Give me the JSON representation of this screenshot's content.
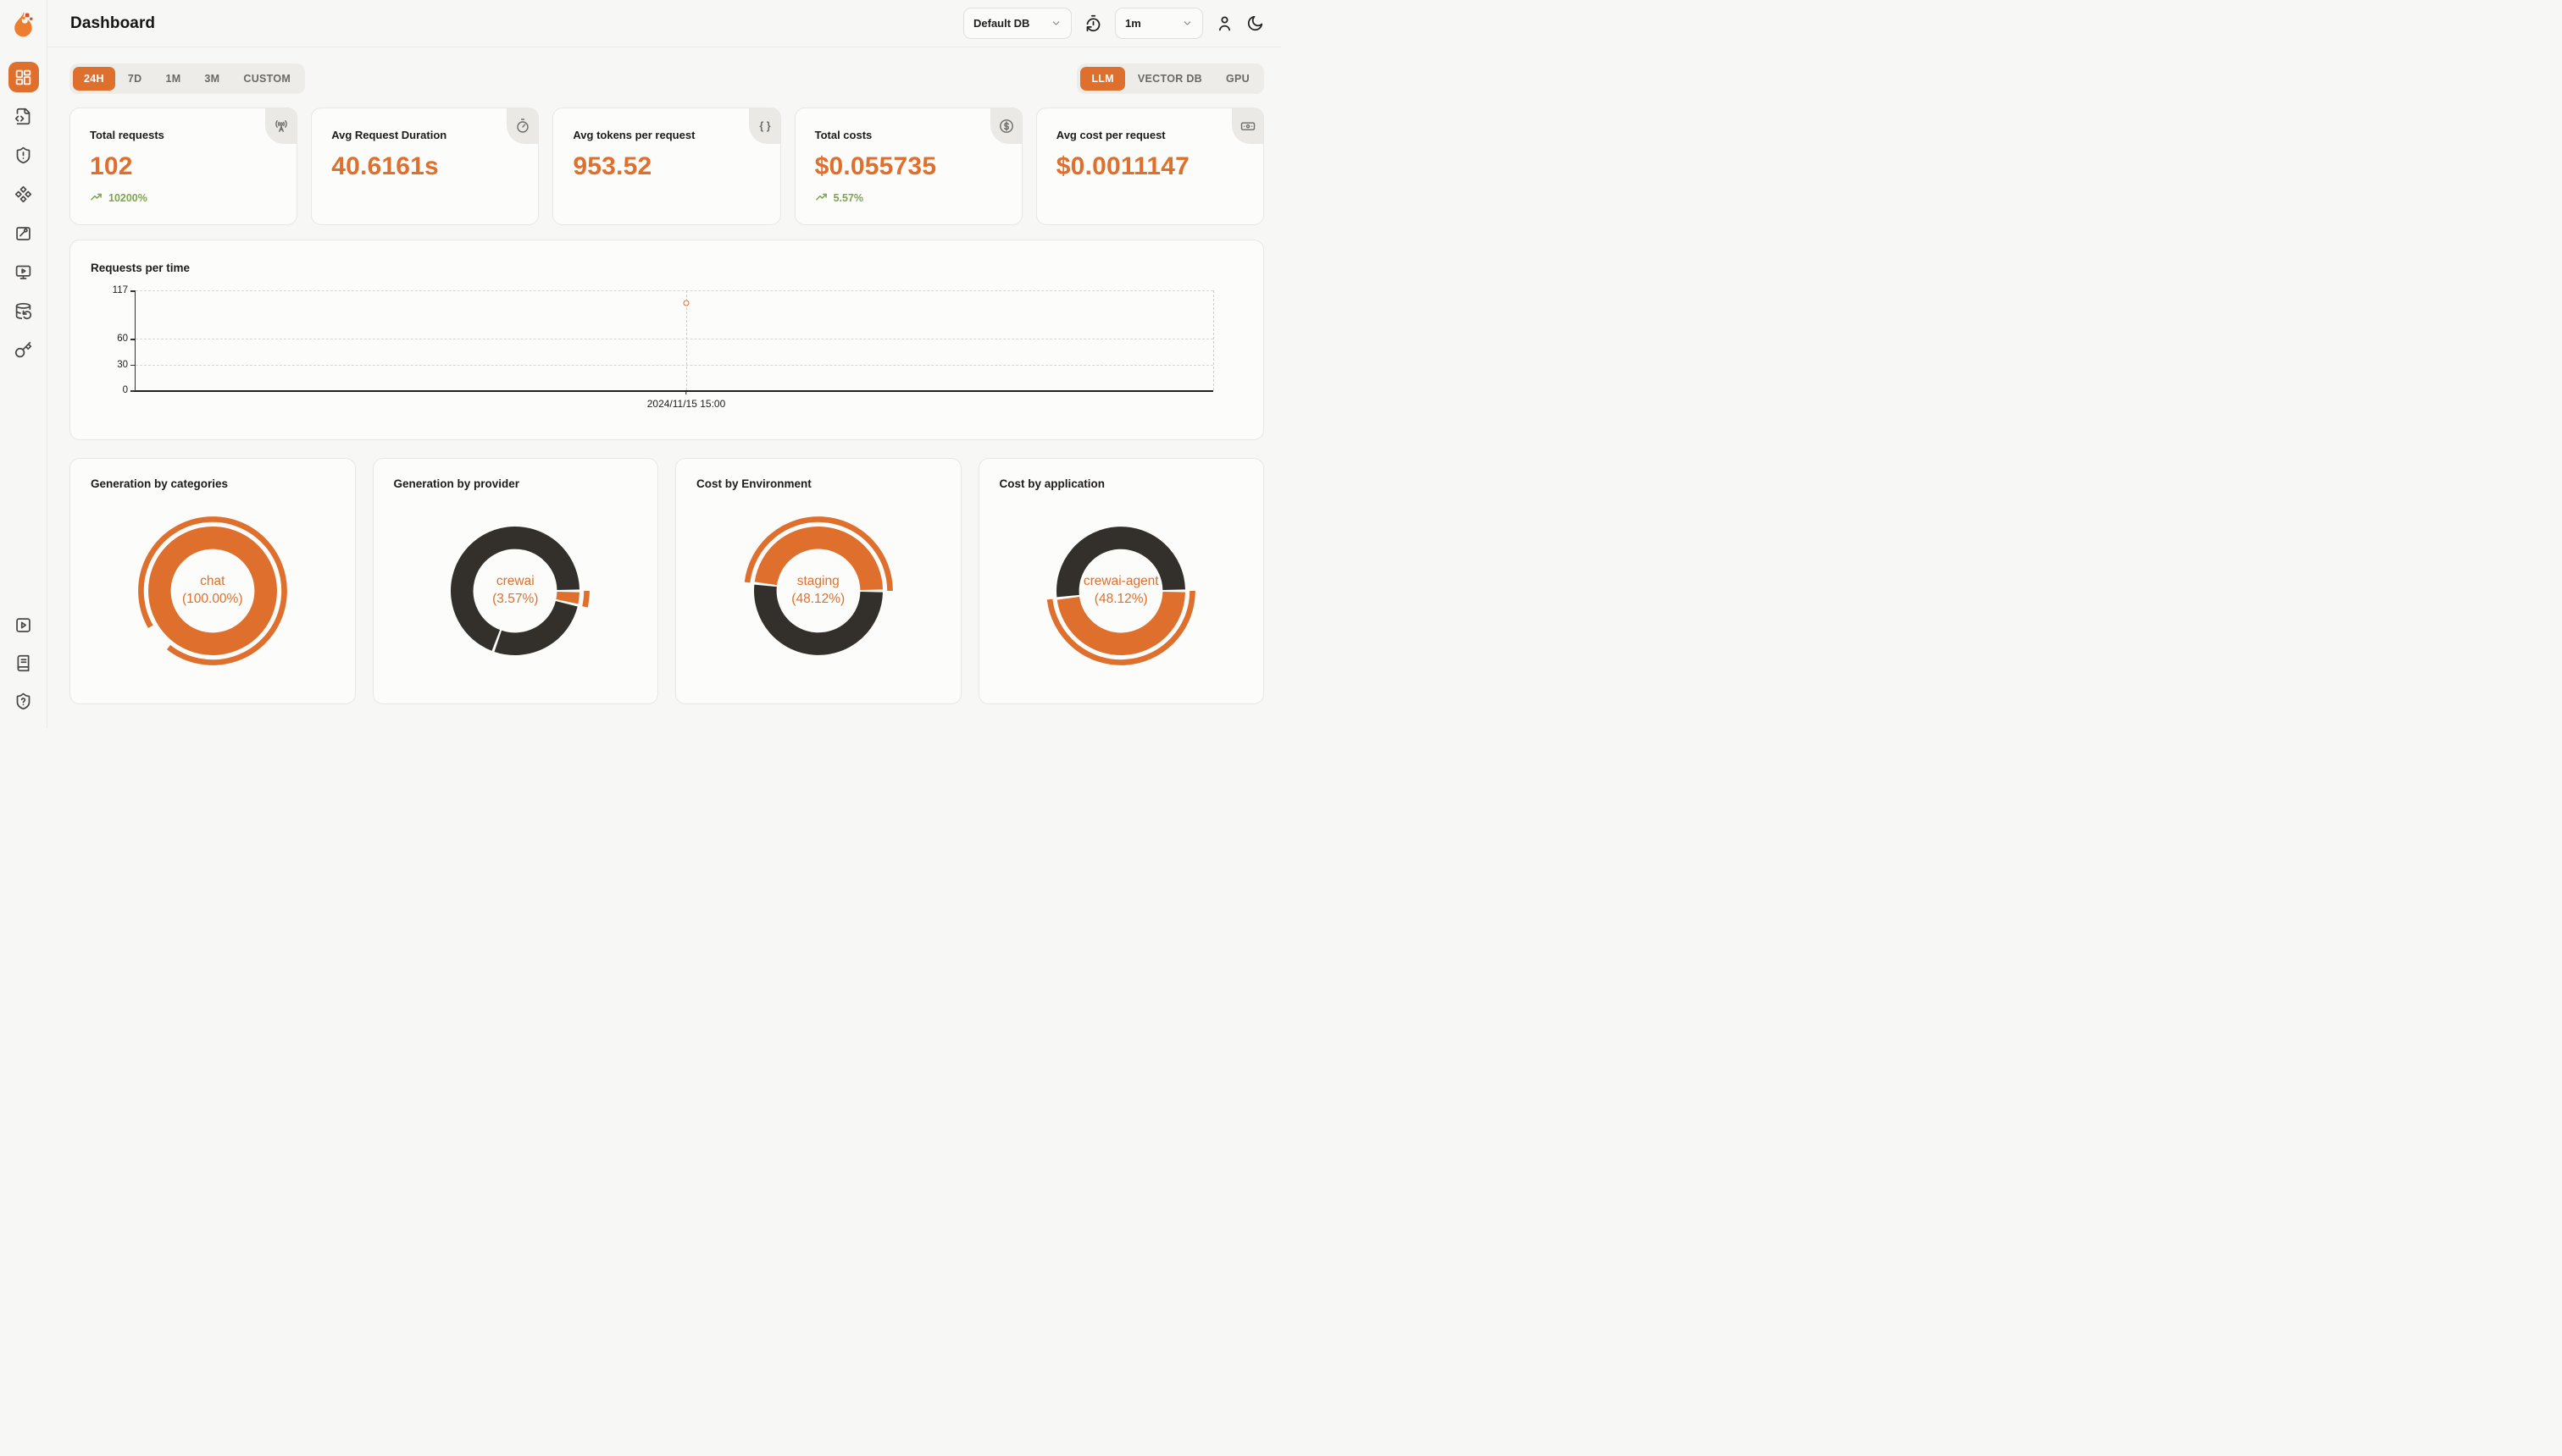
{
  "app": {
    "title": "Dashboard"
  },
  "header": {
    "db_select": {
      "value": "Default DB"
    },
    "interval_select": {
      "value": "1m"
    },
    "icons": [
      "timer-reset-icon",
      "user-icon",
      "moon-icon"
    ]
  },
  "sidebar": {
    "active": "dashboard",
    "icons": [
      "dashboard",
      "file-code",
      "shield-alert",
      "components",
      "evaluation",
      "monitor-play",
      "database-backup",
      "api-key"
    ],
    "footer_icons": [
      "video-tutorials",
      "docs",
      "help"
    ]
  },
  "filters": {
    "time_ranges": [
      "24H",
      "7D",
      "1M",
      "3M",
      "CUSTOM"
    ],
    "active_time_range": "24H",
    "modes": [
      "LLM",
      "VECTOR DB",
      "GPU"
    ],
    "active_mode": "LLM"
  },
  "stats": [
    {
      "label": "Total requests",
      "value": "102",
      "trend": "10200%",
      "icon": "radio-tower"
    },
    {
      "label": "Avg Request Duration",
      "value": "40.6161s",
      "trend": null,
      "icon": "stopwatch"
    },
    {
      "label": "Avg tokens per request",
      "value": "953.52",
      "trend": null,
      "icon": "braces"
    },
    {
      "label": "Total costs",
      "value": "$0.055735",
      "trend": "5.57%",
      "icon": "circle-dollar"
    },
    {
      "label": "Avg cost per request",
      "value": "$0.0011147",
      "trend": null,
      "icon": "banknote"
    }
  ],
  "chart_data": [
    {
      "type": "line",
      "title": "Requests per time",
      "x": [
        "2024/11/15 15:00"
      ],
      "series": [
        {
          "name": "Requests",
          "values": [
            102
          ]
        }
      ],
      "ylim": [
        0,
        117
      ],
      "yticks": [
        0,
        30,
        60,
        117
      ],
      "x_fraction": 0.511,
      "grid": "dashed",
      "legend": "none"
    },
    {
      "type": "pie",
      "title": "Generation by categories",
      "center": [
        "chat",
        "(100.00%)"
      ],
      "segments": [
        {
          "label": "chat",
          "value": 100.0,
          "color": "orange",
          "start": 0,
          "sweep": 360
        }
      ],
      "highlight": {
        "start": 240,
        "sweep": 338
      }
    },
    {
      "type": "pie",
      "title": "Generation by provider",
      "center": [
        "crewai",
        "(3.57%)"
      ],
      "segments": [
        {
          "label": "",
          "value": 69.4,
          "color": "dark",
          "start": 200,
          "sweep": 250
        },
        {
          "label": "crewai",
          "value": 3.57,
          "color": "orange",
          "start": 90,
          "sweep": 12.9
        },
        {
          "label": "",
          "value": 27.03,
          "color": "dark",
          "start": 102.9,
          "sweep": 97.1
        }
      ],
      "highlight": {
        "start": 90,
        "sweep": 12.9
      }
    },
    {
      "type": "pie",
      "title": "Cost by Environment",
      "center": [
        "staging",
        "(48.12%)"
      ],
      "segments": [
        {
          "label": "staging",
          "value": 48.12,
          "color": "orange",
          "start": 276.8,
          "sweep": 173.2
        },
        {
          "label": "",
          "value": 51.88,
          "color": "dark",
          "start": 90,
          "sweep": 186.8
        }
      ],
      "highlight": {
        "start": 276.8,
        "sweep": 173.2
      }
    },
    {
      "type": "pie",
      "title": "Cost by application",
      "center": [
        "crewai-agent",
        "(48.12%)"
      ],
      "segments": [
        {
          "label": "crewai-agent",
          "value": 48.12,
          "color": "orange",
          "start": 90,
          "sweep": 173.2
        },
        {
          "label": "",
          "value": 51.88,
          "color": "dark",
          "start": 263.2,
          "sweep": 186.8
        }
      ],
      "highlight": {
        "start": 90,
        "sweep": 173.2
      }
    }
  ],
  "colors": {
    "orange": "#DF6F2D",
    "dark": "#33302C",
    "green": "#7CA64D",
    "grid": "#D7D6D2"
  }
}
